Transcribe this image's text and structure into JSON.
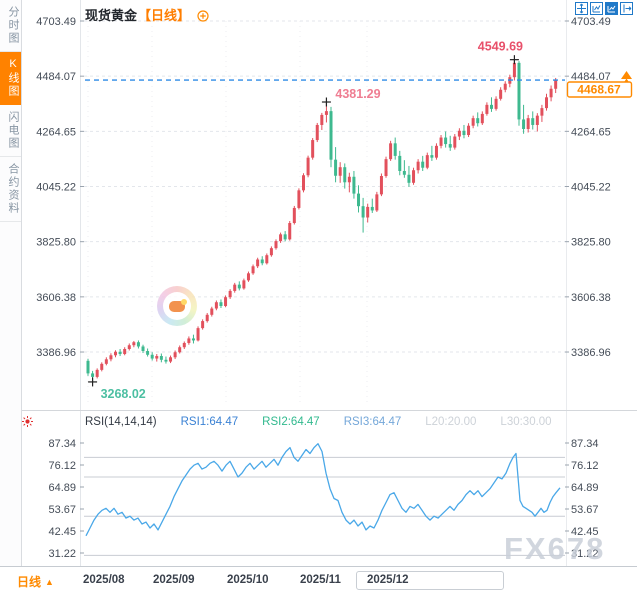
{
  "sidebar": {
    "items": [
      {
        "label": "分时图",
        "active": false
      },
      {
        "label": "K线图",
        "active": true
      },
      {
        "label": "闪电图",
        "active": false
      },
      {
        "label": "合约资料",
        "active": false
      }
    ]
  },
  "header": {
    "title": "现货黄金",
    "period_tag": "【日线】",
    "toolbar_icons": [
      "pan-crosshair",
      "scale-chart",
      "candlestick-chart-active",
      "collapse-panel"
    ]
  },
  "main_chart": {
    "current_price": "4468.67",
    "colors": {
      "up_candle": "#e2505c",
      "down_candle": "#3eb98f",
      "last_price_line": "#2e8be6",
      "current_price_box": "#ff8a00",
      "high_annotation": "#e8506a",
      "peak_annotation": "#ef7d92",
      "low_annotation": "#4cbfa2"
    }
  },
  "rsi_panel": {
    "label": "RSI(14,14,14)",
    "series": [
      {
        "text": "RSI1:64.47",
        "color": "#3b82d4"
      },
      {
        "text": "RSI2:64.47",
        "color": "#31b98e"
      },
      {
        "text": "RSI3:64.47",
        "color": "#74a7d9"
      },
      {
        "text": "L20:20.00",
        "color": "#cdd2d8"
      },
      {
        "text": "L30:30.00",
        "color": "#cdd2d8"
      }
    ]
  },
  "bottom_bar": {
    "period_label": "日线",
    "period_arrow": "▲"
  },
  "watermark": "FX678",
  "chart_data": {
    "type": "candlestick",
    "title": "现货黄金 日线",
    "price_panel": {
      "axis_labels": [
        4703.49,
        4484.07,
        4264.65,
        4045.22,
        3825.8,
        3606.38,
        3386.96
      ],
      "grid_step": 219.42,
      "marked_high": 4549.69,
      "marked_peak": 4381.29,
      "marked_low": 3268.02,
      "last_price": 4468.67,
      "candles": [
        [
          3352,
          3360,
          3292,
          3302
        ],
        [
          3302,
          3312,
          3268.02,
          3288
        ],
        [
          3288,
          3322,
          3282,
          3316
        ],
        [
          3316,
          3346,
          3310,
          3340
        ],
        [
          3340,
          3366,
          3334,
          3358
        ],
        [
          3358,
          3382,
          3350,
          3374
        ],
        [
          3374,
          3394,
          3366,
          3388
        ],
        [
          3388,
          3399,
          3371,
          3379
        ],
        [
          3379,
          3406,
          3374,
          3399
        ],
        [
          3399,
          3421,
          3393,
          3414
        ],
        [
          3414,
          3431,
          3406,
          3426
        ],
        [
          3426,
          3433,
          3401,
          3409
        ],
        [
          3409,
          3416,
          3383,
          3391
        ],
        [
          3391,
          3401,
          3369,
          3376
        ],
        [
          3376,
          3386,
          3353,
          3361
        ],
        [
          3361,
          3379,
          3349,
          3371
        ],
        [
          3371,
          3381,
          3346,
          3356
        ],
        [
          3356,
          3369,
          3341,
          3349
        ],
        [
          3349,
          3373,
          3343,
          3366
        ],
        [
          3366,
          3393,
          3359,
          3386
        ],
        [
          3386,
          3413,
          3381,
          3406
        ],
        [
          3406,
          3429,
          3399,
          3423
        ],
        [
          3423,
          3449,
          3416,
          3441
        ],
        [
          3441,
          3456,
          3421,
          3433
        ],
        [
          3433,
          3489,
          3429,
          3482
        ],
        [
          3482,
          3517,
          3476,
          3510
        ],
        [
          3510,
          3542,
          3504,
          3535
        ],
        [
          3535,
          3567,
          3528,
          3560
        ],
        [
          3560,
          3592,
          3553,
          3585
        ],
        [
          3585,
          3596,
          3562,
          3570
        ],
        [
          3570,
          3612,
          3565,
          3605
        ],
        [
          3605,
          3637,
          3598,
          3630
        ],
        [
          3630,
          3662,
          3623,
          3655
        ],
        [
          3655,
          3668,
          3632,
          3640
        ],
        [
          3640,
          3679,
          3635,
          3672
        ],
        [
          3672,
          3707,
          3666,
          3700
        ],
        [
          3700,
          3735,
          3694,
          3728
        ],
        [
          3728,
          3762,
          3721,
          3755
        ],
        [
          3755,
          3768,
          3732,
          3740
        ],
        [
          3740,
          3779,
          3735,
          3772
        ],
        [
          3772,
          3807,
          3766,
          3800
        ],
        [
          3800,
          3835,
          3794,
          3828
        ],
        [
          3828,
          3862,
          3821,
          3855
        ],
        [
          3855,
          3868,
          3827,
          3835
        ],
        [
          3835,
          3908,
          3830,
          3900
        ],
        [
          3900,
          3968,
          3894,
          3960
        ],
        [
          3960,
          4038,
          3954,
          4030
        ],
        [
          4030,
          4098,
          4022,
          4090
        ],
        [
          4090,
          4168,
          4082,
          4160
        ],
        [
          4160,
          4238,
          4152,
          4230
        ],
        [
          4230,
          4298,
          4222,
          4290
        ],
        [
          4290,
          4338,
          4270,
          4330
        ],
        [
          4330,
          4381.29,
          4300,
          4345
        ],
        [
          4345,
          4362,
          4122,
          4152
        ],
        [
          4152,
          4202,
          4062,
          4088
        ],
        [
          4088,
          4142,
          4060,
          4122
        ],
        [
          4122,
          4137,
          4037,
          4062
        ],
        [
          4062,
          4100,
          4022,
          4084
        ],
        [
          4084,
          4107,
          3997,
          4017
        ],
        [
          4017,
          4050,
          3942,
          3967
        ],
        [
          3967,
          4000,
          3862,
          3922
        ],
        [
          3922,
          3977,
          3902,
          3964
        ],
        [
          3964,
          3997,
          3940,
          3950
        ],
        [
          3950,
          4024,
          3944,
          4014
        ],
        [
          4014,
          4097,
          4007,
          4087
        ],
        [
          4087,
          4164,
          4080,
          4154
        ],
        [
          4154,
          4227,
          4147,
          4217
        ],
        [
          4217,
          4240,
          4152,
          4167
        ],
        [
          4167,
          4187,
          4090,
          4107
        ],
        [
          4107,
          4150,
          4080,
          4092
        ],
        [
          4092,
          4127,
          4044,
          4060
        ],
        [
          4060,
          4120,
          4052,
          4110
        ],
        [
          4110,
          4154,
          4097,
          4144
        ],
        [
          4144,
          4167,
          4107,
          4120
        ],
        [
          4120,
          4180,
          4114,
          4170
        ],
        [
          4170,
          4207,
          4147,
          4160
        ],
        [
          4160,
          4217,
          4152,
          4207
        ],
        [
          4207,
          4250,
          4197,
          4240
        ],
        [
          4240,
          4264,
          4200,
          4214
        ],
        [
          4214,
          4247,
          4187,
          4200
        ],
        [
          4200,
          4254,
          4192,
          4244
        ],
        [
          4244,
          4277,
          4230,
          4267
        ],
        [
          4267,
          4290,
          4237,
          4250
        ],
        [
          4250,
          4297,
          4242,
          4287
        ],
        [
          4287,
          4327,
          4277,
          4317
        ],
        [
          4317,
          4340,
          4284,
          4297
        ],
        [
          4297,
          4344,
          4290,
          4334
        ],
        [
          4334,
          4380,
          4327,
          4370
        ],
        [
          4370,
          4400,
          4342,
          4354
        ],
        [
          4354,
          4404,
          4347,
          4394
        ],
        [
          4394,
          4440,
          4387,
          4430
        ],
        [
          4430,
          4464,
          4420,
          4454
        ],
        [
          4454,
          4490,
          4440,
          4480
        ],
        [
          4480,
          4549.69,
          4467,
          4537
        ],
        [
          4537,
          4544,
          4287,
          4312
        ],
        [
          4312,
          4370,
          4255,
          4274
        ],
        [
          4274,
          4330,
          4260,
          4317
        ],
        [
          4317,
          4344,
          4272,
          4290
        ],
        [
          4290,
          4337,
          4264,
          4327
        ],
        [
          4327,
          4370,
          4302,
          4357
        ],
        [
          4357,
          4414,
          4347,
          4400
        ],
        [
          4400,
          4447,
          4384,
          4434
        ],
        [
          4434,
          4477,
          4417,
          4468.67
        ]
      ]
    },
    "rsi": {
      "title": "RSI(14,14,14)",
      "values": {
        "rsi1": 64.47,
        "rsi2": 64.47,
        "rsi3": 64.47,
        "l20": 20.0,
        "l30": 30.0
      },
      "axis_labels": [
        87.34,
        76.12,
        64.89,
        53.67,
        42.45,
        31.22
      ],
      "grid_values": [
        80,
        70,
        50,
        30
      ],
      "points": [
        [
          86,
          40
        ],
        [
          90,
          44
        ],
        [
          94,
          48
        ],
        [
          98,
          51
        ],
        [
          102,
          53
        ],
        [
          106,
          54
        ],
        [
          110,
          52
        ],
        [
          114,
          54
        ],
        [
          118,
          51
        ],
        [
          122,
          52
        ],
        [
          126,
          49
        ],
        [
          130,
          50
        ],
        [
          134,
          48
        ],
        [
          138,
          49
        ],
        [
          142,
          46
        ],
        [
          146,
          47
        ],
        [
          150,
          44
        ],
        [
          154,
          46
        ],
        [
          158,
          43
        ],
        [
          162,
          47
        ],
        [
          166,
          51
        ],
        [
          170,
          55
        ],
        [
          174,
          60
        ],
        [
          178,
          64
        ],
        [
          182,
          68
        ],
        [
          186,
          71
        ],
        [
          190,
          74
        ],
        [
          194,
          76
        ],
        [
          198,
          77
        ],
        [
          202,
          74
        ],
        [
          206,
          75
        ],
        [
          210,
          77
        ],
        [
          214,
          78
        ],
        [
          218,
          76
        ],
        [
          222,
          73
        ],
        [
          226,
          76
        ],
        [
          230,
          78
        ],
        [
          234,
          74
        ],
        [
          238,
          70
        ],
        [
          242,
          72
        ],
        [
          246,
          75
        ],
        [
          250,
          77
        ],
        [
          254,
          74
        ],
        [
          258,
          76
        ],
        [
          262,
          78
        ],
        [
          266,
          75
        ],
        [
          270,
          77
        ],
        [
          274,
          79
        ],
        [
          278,
          76
        ],
        [
          282,
          80
        ],
        [
          286,
          83
        ],
        [
          290,
          85
        ],
        [
          294,
          80
        ],
        [
          298,
          78
        ],
        [
          302,
          81
        ],
        [
          306,
          84
        ],
        [
          310,
          82
        ],
        [
          314,
          85
        ],
        [
          318,
          87
        ],
        [
          322,
          83
        ],
        [
          326,
          72
        ],
        [
          330,
          64
        ],
        [
          334,
          59
        ],
        [
          338,
          58
        ],
        [
          342,
          52
        ],
        [
          346,
          48
        ],
        [
          350,
          46
        ],
        [
          354,
          48
        ],
        [
          358,
          45
        ],
        [
          362,
          47
        ],
        [
          366,
          43
        ],
        [
          370,
          45
        ],
        [
          374,
          44
        ],
        [
          378,
          48
        ],
        [
          382,
          53
        ],
        [
          386,
          57
        ],
        [
          390,
          61
        ],
        [
          394,
          62
        ],
        [
          398,
          58
        ],
        [
          402,
          54
        ],
        [
          406,
          52
        ],
        [
          410,
          55
        ],
        [
          414,
          54
        ],
        [
          418,
          56
        ],
        [
          422,
          53
        ],
        [
          426,
          50
        ],
        [
          430,
          48
        ],
        [
          434,
          50
        ],
        [
          438,
          49
        ],
        [
          442,
          51
        ],
        [
          446,
          53
        ],
        [
          450,
          55
        ],
        [
          454,
          53
        ],
        [
          458,
          56
        ],
        [
          462,
          58
        ],
        [
          466,
          61
        ],
        [
          470,
          63
        ],
        [
          474,
          61
        ],
        [
          478,
          63
        ],
        [
          482,
          60
        ],
        [
          486,
          62
        ],
        [
          490,
          64
        ],
        [
          494,
          67
        ],
        [
          498,
          70
        ],
        [
          502,
          69
        ],
        [
          506,
          72
        ],
        [
          510,
          77
        ],
        [
          513,
          80
        ],
        [
          516,
          82
        ],
        [
          518,
          70
        ],
        [
          520,
          58
        ],
        [
          523,
          55
        ],
        [
          526,
          54
        ],
        [
          529,
          53
        ],
        [
          532,
          52
        ],
        [
          535,
          50
        ],
        [
          538,
          52
        ],
        [
          541,
          54
        ],
        [
          544,
          52
        ],
        [
          547,
          53
        ],
        [
          550,
          57
        ],
        [
          553,
          60
        ],
        [
          556,
          62
        ],
        [
          560,
          64.47
        ]
      ]
    },
    "x_labels": [
      "2025/08",
      "2025/09",
      "2025/10",
      "2025/11",
      "2025/12"
    ]
  }
}
